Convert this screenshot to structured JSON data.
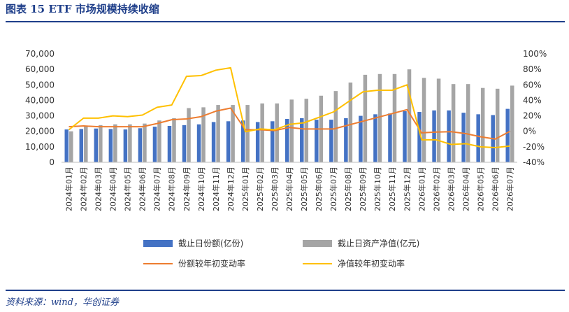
{
  "header": {
    "title": "图表 15   ETF 市场规模持续收缩"
  },
  "footer": {
    "source": "资料来源：wind，华创证券"
  },
  "chart_data": {
    "type": "bar",
    "categories": [
      "2024年01月",
      "2024年02月",
      "2024年03月",
      "2024年04月",
      "2024年05月",
      "2024年06月",
      "2024年07月",
      "2024年08月",
      "2024年09月",
      "2024年10月",
      "2024年11月",
      "2024年12月",
      "2025年01月",
      "2025年02月",
      "2025年03月",
      "2025年04月",
      "2025年05月",
      "2025年06月",
      "2025年07月",
      "2025年08月",
      "2025年09月",
      "2025年10月",
      "2025年11月",
      "2025年12月",
      "2026年01月",
      "2026年02月",
      "2026年03月",
      "2026年04月",
      "2026年05月",
      "2026年06月",
      "2026年07月"
    ],
    "y_left": {
      "ticks": [
        "0",
        "10,000",
        "20,000",
        "30,000",
        "40,000",
        "50,000",
        "60,000",
        "70,000"
      ],
      "range": [
        0,
        70000
      ]
    },
    "y_right": {
      "ticks": [
        "-40%",
        "-20%",
        "0%",
        "20%",
        "40%",
        "60%",
        "80%",
        "100%"
      ],
      "range": [
        -40,
        100
      ]
    },
    "series": [
      {
        "name": "截止日份额(亿份)",
        "type": "bar",
        "axis": "left",
        "color": "#4472c4",
        "values": [
          21200,
          21500,
          21800,
          21500,
          21200,
          22000,
          23000,
          23500,
          24000,
          24500,
          26000,
          26500,
          27000,
          26000,
          26500,
          28000,
          28500,
          27500,
          27500,
          28500,
          30000,
          31000,
          31500,
          33000,
          32500,
          33500,
          33500,
          32000,
          31000,
          30500,
          34500
        ]
      },
      {
        "name": "截止日资产净值(亿元)",
        "type": "bar",
        "axis": "left",
        "color": "#a5a5a5",
        "values": [
          20000,
          23500,
          24000,
          24500,
          24500,
          25000,
          27000,
          28500,
          35000,
          35500,
          37000,
          37000,
          37000,
          38000,
          38000,
          40500,
          41000,
          43000,
          46000,
          51500,
          56500,
          57000,
          57000,
          60000,
          54500,
          54000,
          50500,
          50500,
          48000,
          47500,
          49500
        ]
      },
      {
        "name": "份额较年初变动率",
        "type": "line",
        "axis": "right",
        "color": "#ed7d31",
        "values": [
          6,
          7,
          6,
          6,
          6,
          6,
          10,
          15,
          16,
          19,
          26,
          30,
          2,
          2,
          1,
          5,
          3,
          3,
          3,
          8,
          13,
          18,
          23,
          28,
          -2,
          -1,
          -0.5,
          -3,
          -7,
          -10,
          0
        ]
      },
      {
        "name": "净值较年初变动率",
        "type": "line",
        "axis": "right",
        "color": "#ffc000",
        "values": [
          2,
          17,
          17,
          20,
          19,
          21,
          31,
          34,
          71,
          72,
          79,
          82,
          -0.5,
          3,
          2,
          9,
          11,
          18,
          25,
          38,
          51,
          53,
          53,
          60,
          -11,
          -11,
          -17,
          -16,
          -20,
          -21,
          -19
        ]
      }
    ],
    "legend": "bottom",
    "grid": false
  }
}
